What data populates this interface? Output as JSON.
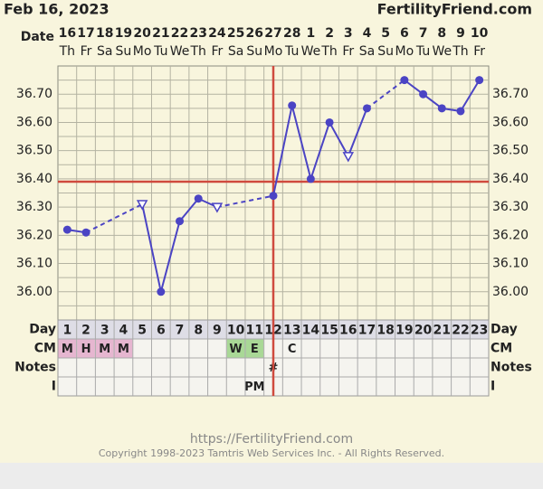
{
  "header": {
    "date": "Feb 16, 2023",
    "site": "FertilityFriend.com"
  },
  "chart_data": {
    "type": "line",
    "row_labels": {
      "date": "Date",
      "day": "Day",
      "cm": "CM",
      "notes": "Notes",
      "i": "I"
    },
    "dates": [
      "16",
      "17",
      "18",
      "19",
      "20",
      "21",
      "22",
      "23",
      "24",
      "25",
      "26",
      "27",
      "28",
      "1",
      "2",
      "3",
      "4",
      "5",
      "6",
      "7",
      "8",
      "9",
      "10"
    ],
    "weekdays": [
      "Th",
      "Fr",
      "Sa",
      "Su",
      "Mo",
      "Tu",
      "We",
      "Th",
      "Fr",
      "Sa",
      "Su",
      "Mo",
      "Tu",
      "We",
      "Th",
      "Fr",
      "Sa",
      "Su",
      "Mo",
      "Tu",
      "We",
      "Th",
      "Fr"
    ],
    "categories": [
      "1",
      "2",
      "3",
      "4",
      "5",
      "6",
      "7",
      "8",
      "9",
      "10",
      "11",
      "12",
      "13",
      "14",
      "15",
      "16",
      "17",
      "18",
      "19",
      "20",
      "21",
      "22",
      "23"
    ],
    "series": [
      {
        "color": "#4b44c4",
        "values": [
          36.22,
          36.21,
          null,
          null,
          36.31,
          36.0,
          36.25,
          36.33,
          36.3,
          null,
          null,
          36.34,
          36.66,
          36.4,
          36.6,
          36.48,
          36.65,
          null,
          36.75,
          36.7,
          36.65,
          36.64,
          36.75
        ],
        "markers": [
          "circle",
          "circle",
          null,
          null,
          "triangle",
          "circle",
          "circle",
          "circle",
          "triangle",
          null,
          null,
          "circle",
          "circle",
          "circle",
          "circle",
          "triangle",
          "circle",
          null,
          "circle",
          "circle",
          "circle",
          "circle",
          "circle"
        ]
      }
    ],
    "ylim": [
      35.9,
      36.8
    ],
    "yticks": [
      {
        "value": 36.0,
        "label": "36.00"
      },
      {
        "value": 36.1,
        "label": "36.10"
      },
      {
        "value": 36.2,
        "label": "36.20"
      },
      {
        "value": 36.3,
        "label": "36.30"
      },
      {
        "value": 36.4,
        "label": "36.40"
      },
      {
        "value": 36.5,
        "label": "36.50"
      },
      {
        "value": 36.6,
        "label": "36.60"
      },
      {
        "value": 36.7,
        "label": "36.70"
      }
    ],
    "minor_yticks": [
      35.95,
      36.05,
      36.15,
      36.25,
      36.35,
      36.45,
      36.55,
      36.65,
      36.75
    ],
    "coverline": 36.39,
    "coverline_color": "#cf4a3e",
    "ovulation_day": 12,
    "cm": [
      "M",
      "H",
      "M",
      "M",
      null,
      null,
      null,
      null,
      null,
      "W",
      "E",
      null,
      "C",
      null,
      null,
      null,
      null,
      null,
      null,
      null,
      null,
      null,
      null
    ],
    "cm_colors": {
      "M": "#e6b6d0",
      "H": "#e6b6d0",
      "W": "#a9d896",
      "E": "#a9d896"
    },
    "notes": [
      null,
      null,
      null,
      null,
      null,
      null,
      null,
      null,
      null,
      null,
      null,
      "#",
      null,
      null,
      null,
      null,
      null,
      null,
      null,
      null,
      null,
      null,
      null
    ],
    "i": [
      null,
      null,
      null,
      null,
      null,
      null,
      null,
      null,
      null,
      null,
      "PM",
      null,
      null,
      null,
      null,
      null,
      null,
      null,
      null,
      null,
      null,
      null,
      null
    ]
  },
  "footer": {
    "url": "https://FertilityFriend.com",
    "copyright": "Copyright 1998-2023 Tamtris Web Services Inc. - All Rights Reserved."
  }
}
